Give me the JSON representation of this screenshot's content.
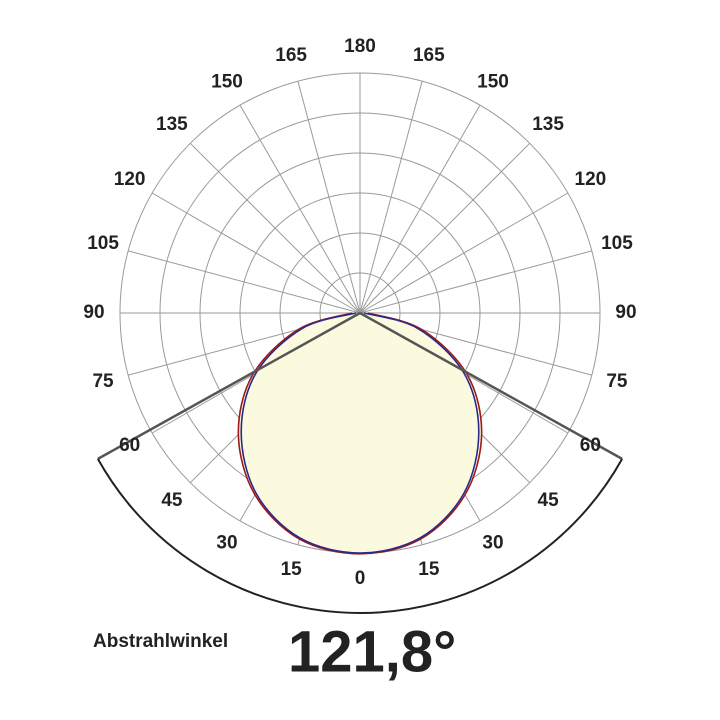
{
  "chart_data": {
    "type": "polar",
    "angles": [
      -90,
      -75,
      -60,
      -45,
      -30,
      -15,
      0,
      15,
      30,
      45,
      60,
      75,
      90
    ],
    "series": [
      {
        "color": "#a01818",
        "values": [
          0.2,
          1.6,
          3.1,
          4.3,
          5.25,
          5.85,
          6.02,
          5.85,
          5.25,
          4.3,
          3.1,
          1.6,
          0.2
        ]
      },
      {
        "color": "#2a2a8a",
        "values": [
          0.1,
          1.5,
          3.0,
          4.2,
          5.2,
          5.82,
          6.0,
          5.82,
          5.2,
          4.2,
          3.0,
          1.5,
          0.1
        ]
      }
    ],
    "rlim": [
      0,
      6
    ],
    "rticks": [
      1,
      2,
      3,
      4,
      5,
      6
    ],
    "angle_ticks": [
      0,
      15,
      30,
      45,
      60,
      75,
      90,
      105,
      120,
      135,
      150,
      165,
      180
    ],
    "beam_angle": {
      "value": 121.8,
      "label": "121,8°"
    },
    "beam_angle_title": "Abstrahlwinkel",
    "fill_color": "#fbfadf",
    "grid": true
  }
}
